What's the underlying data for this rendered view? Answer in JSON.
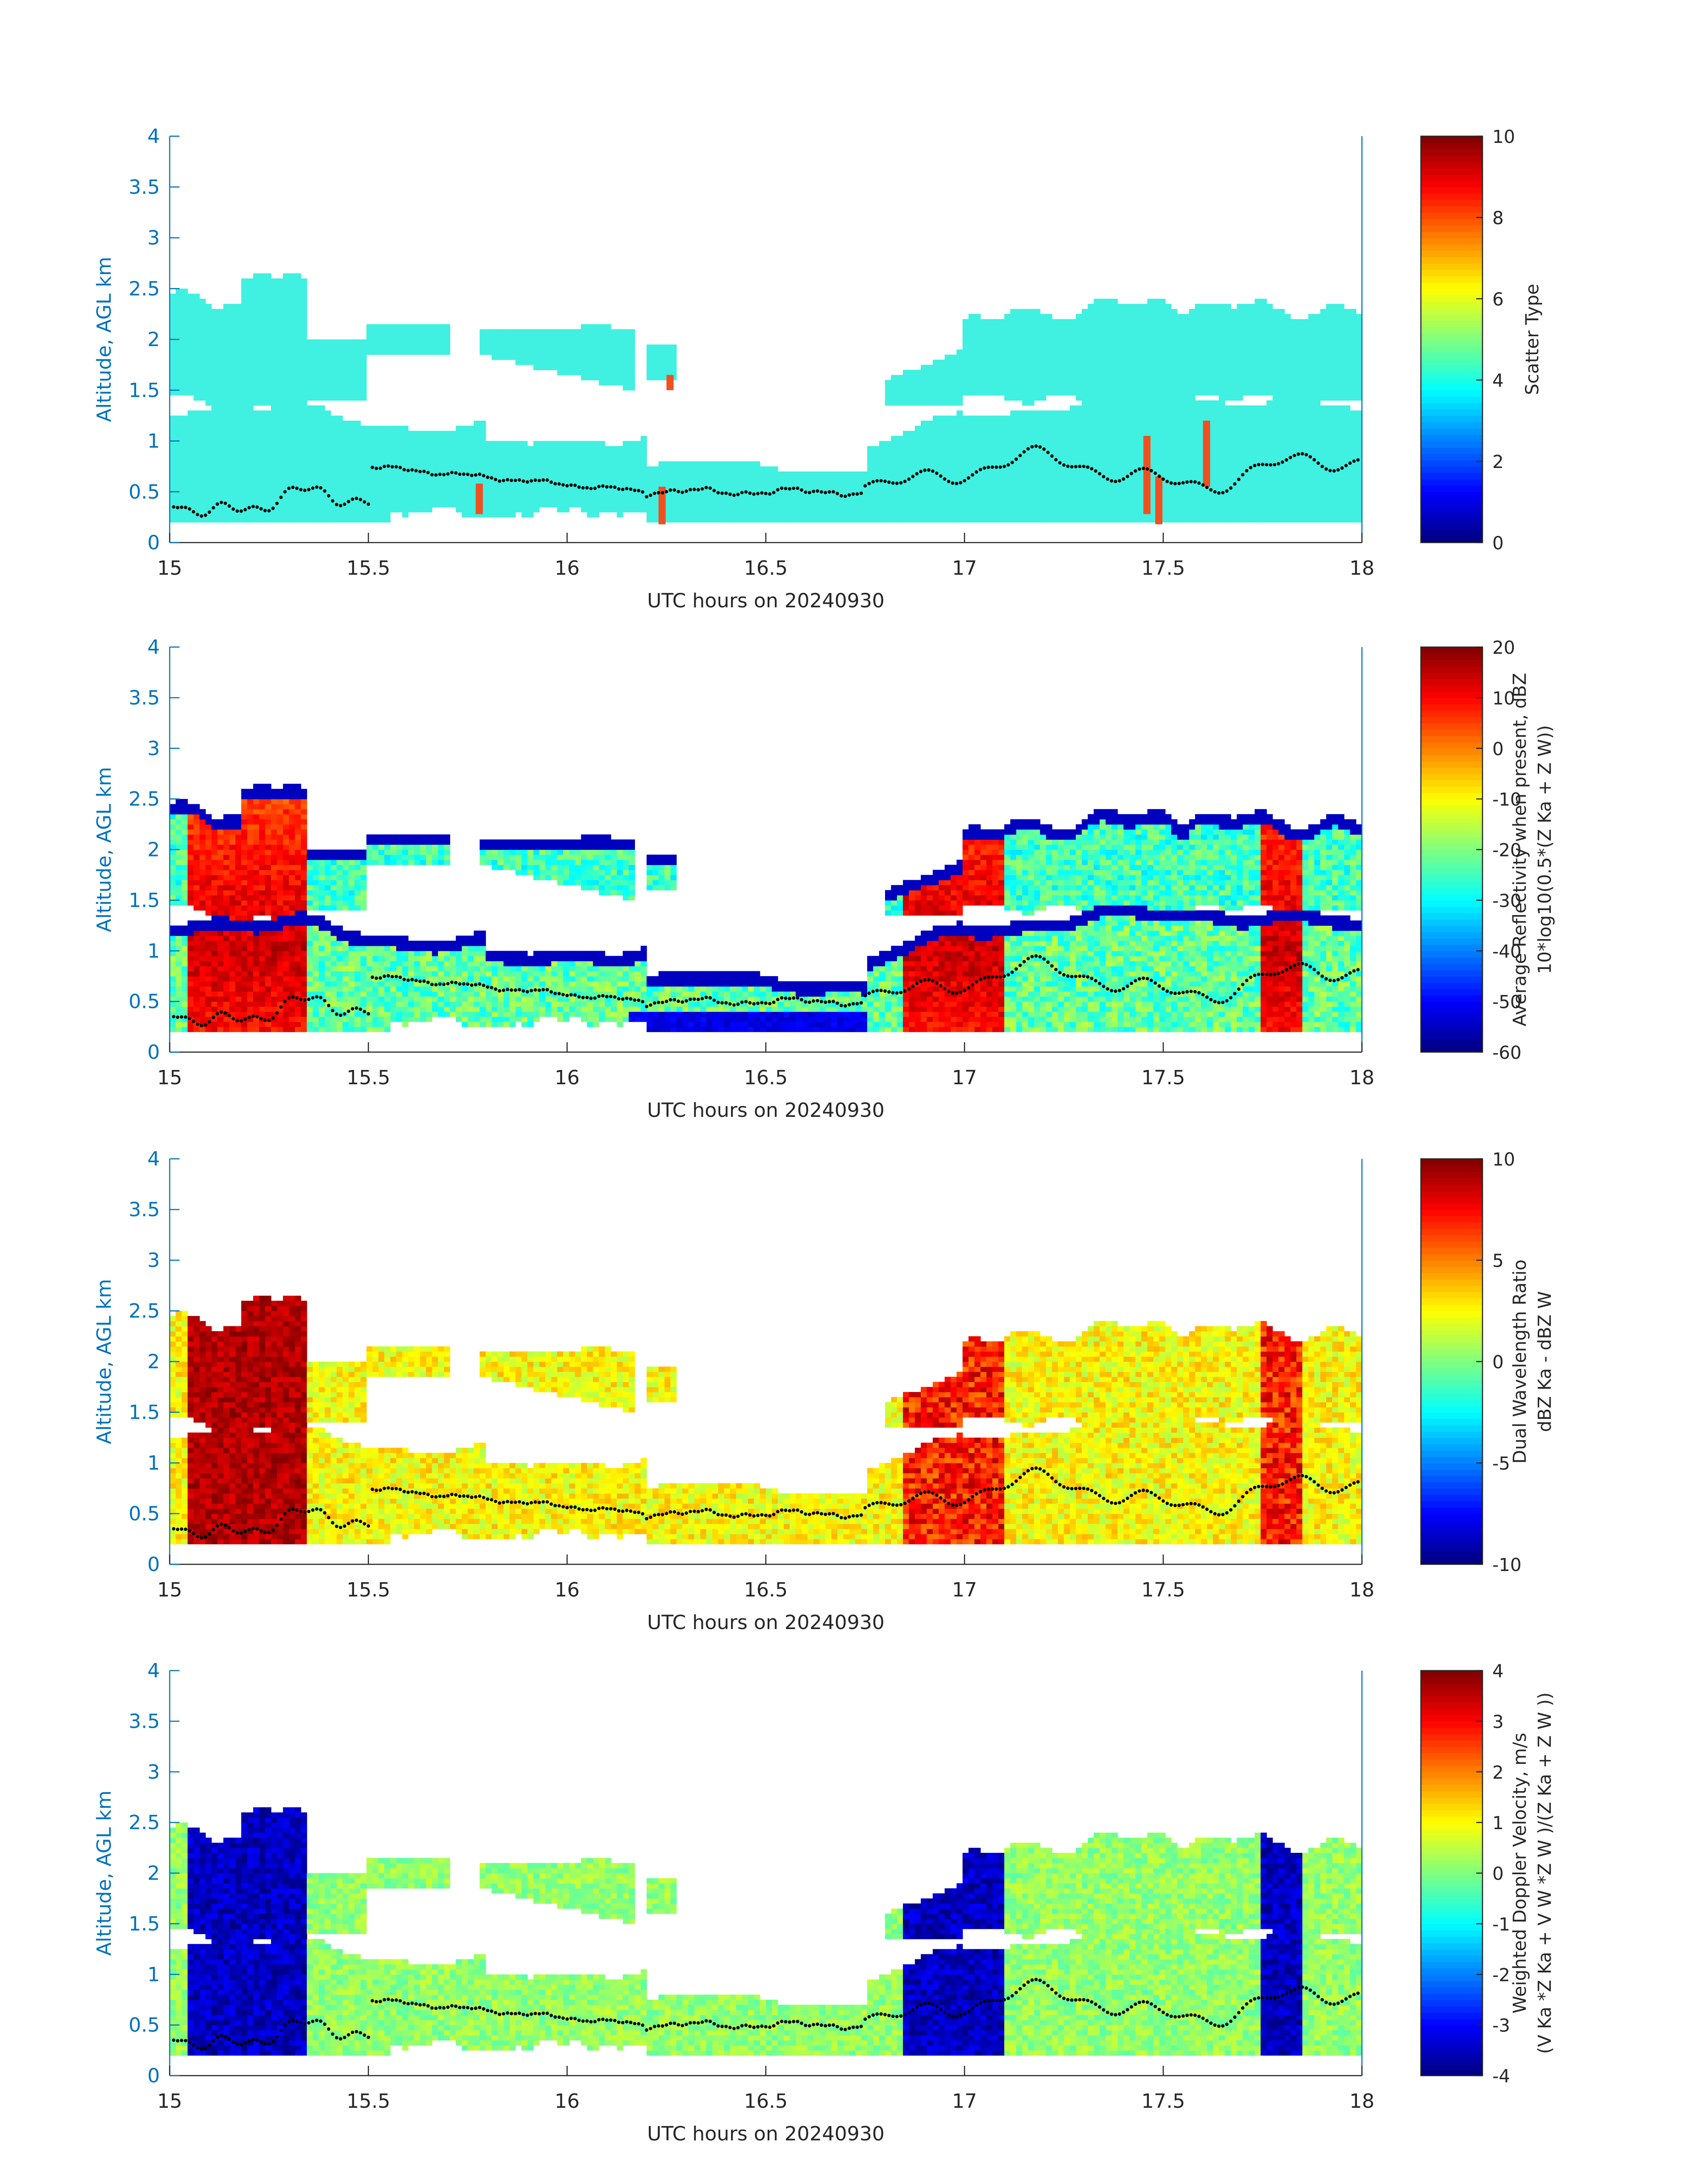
{
  "colors": {
    "axis": "#0072BD",
    "text": "#262626",
    "colormap": "jet",
    "main_echo": "#40F0E0",
    "secondary_echo": "#F05020",
    "dots": "#000000"
  },
  "chart_data": [
    {
      "type": "heatmap",
      "xlabel": "UTC hours on 20240930",
      "ylabel": "Altitude, AGL km",
      "xlim": [
        15,
        18
      ],
      "ylim": [
        0,
        4
      ],
      "xticks": [
        "15",
        "15.5",
        "16",
        "16.5",
        "17",
        "17.5",
        "18"
      ],
      "yticks": [
        "0",
        "0.5",
        "1",
        "1.5",
        "2",
        "2.5",
        "3",
        "3.5",
        "4"
      ],
      "field": "scatter-type",
      "colorbar": {
        "label_lines": [
          "Scatter Type"
        ],
        "range": [
          0,
          10
        ],
        "ticks": [
          "0",
          "2",
          "4",
          "6",
          "8",
          "10"
        ]
      }
    },
    {
      "type": "heatmap",
      "xlabel": "UTC hours on 20240930",
      "ylabel": "Altitude, AGL km",
      "xlim": [
        15,
        18
      ],
      "ylim": [
        0,
        4
      ],
      "xticks": [
        "15",
        "15.5",
        "16",
        "16.5",
        "17",
        "17.5",
        "18"
      ],
      "yticks": [
        "0",
        "0.5",
        "1",
        "1.5",
        "2",
        "2.5",
        "3",
        "3.5",
        "4"
      ],
      "field": "reflectivity",
      "colorbar": {
        "label_lines": [
          "Average Reflectivity when present, dBZ",
          "10*log10(0.5*(Z Ka + Z W))"
        ],
        "range": [
          -60,
          20
        ],
        "ticks": [
          "-60",
          "-50",
          "-40",
          "-30",
          "-20",
          "-10",
          "0",
          "10",
          "20"
        ]
      }
    },
    {
      "type": "heatmap",
      "xlabel": "UTC hours on 20240930",
      "ylabel": "Altitude, AGL km",
      "xlim": [
        15,
        18
      ],
      "ylim": [
        0,
        4
      ],
      "xticks": [
        "15",
        "15.5",
        "16",
        "16.5",
        "17",
        "17.5",
        "18"
      ],
      "yticks": [
        "0",
        "0.5",
        "1",
        "1.5",
        "2",
        "2.5",
        "3",
        "3.5",
        "4"
      ],
      "field": "dwr",
      "colorbar": {
        "label_lines": [
          "Dual Wavelength Ratio",
          "dBZ Ka - dBZ W"
        ],
        "range": [
          -10,
          10
        ],
        "ticks": [
          "-10",
          "-5",
          "0",
          "5",
          "10"
        ]
      }
    },
    {
      "type": "heatmap",
      "xlabel": "UTC hours on 20240930",
      "ylabel": "Altitude, AGL km",
      "xlim": [
        15,
        18
      ],
      "ylim": [
        0,
        4
      ],
      "xticks": [
        "15",
        "15.5",
        "16",
        "16.5",
        "17",
        "17.5",
        "18"
      ],
      "yticks": [
        "0",
        "0.5",
        "1",
        "1.5",
        "2",
        "2.5",
        "3",
        "3.5",
        "4"
      ],
      "field": "doppler",
      "colorbar": {
        "label_lines": [
          "Weighted Doppler Velocity, m/s",
          "(V Ka *Z Ka + V W *Z W )/(Z Ka + Z W ))"
        ],
        "range": [
          -4,
          4
        ],
        "ticks": [
          "-4",
          "-3",
          "-2",
          "-1",
          "0",
          "1",
          "2",
          "3",
          "4"
        ]
      }
    }
  ]
}
